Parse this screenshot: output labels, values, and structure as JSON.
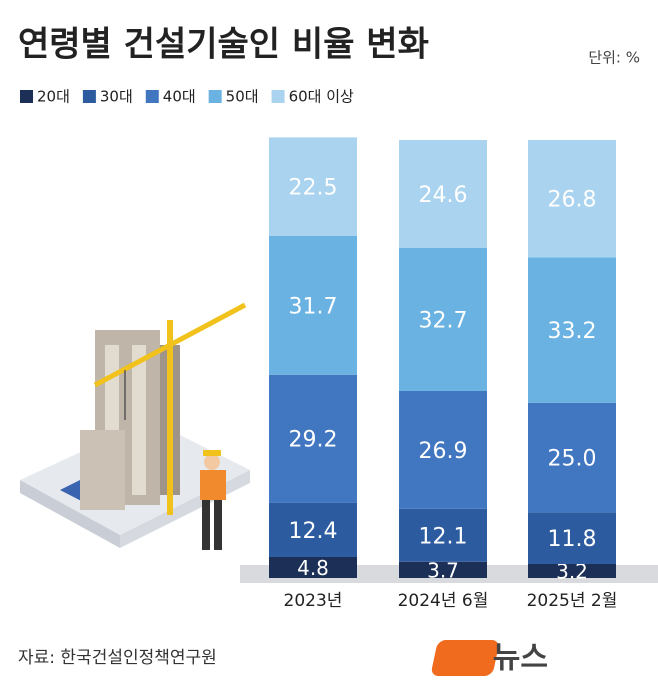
{
  "chart_data": {
    "type": "stacked_bar",
    "title": "연령별 건설기술인 비율 변화",
    "unit": "단위: %",
    "source": "자료: 한국건설인정책연구원",
    "logo": {
      "text": "뉴스",
      "mark": "1"
    },
    "categories": [
      "2023년",
      "2024년 6월",
      "2025년 2월"
    ],
    "ylim": [
      0,
      100
    ],
    "series": [
      {
        "name": "20대",
        "color": "#1b2f57",
        "values": [
          4.8,
          3.7,
          3.2
        ]
      },
      {
        "name": "30대",
        "color": "#2c5ba0",
        "values": [
          12.4,
          12.1,
          11.8
        ]
      },
      {
        "name": "40대",
        "color": "#4176c0",
        "values": [
          29.2,
          26.9,
          25.0
        ],
        "value_labels": [
          "29.2",
          "26.9",
          "25.0"
        ]
      },
      {
        "name": "50대",
        "color": "#69b2e2",
        "values": [
          31.7,
          32.7,
          33.2
        ]
      },
      {
        "name": "60대 이상",
        "color": "#a9d3ef",
        "values": [
          22.5,
          24.6,
          26.8
        ]
      }
    ]
  }
}
